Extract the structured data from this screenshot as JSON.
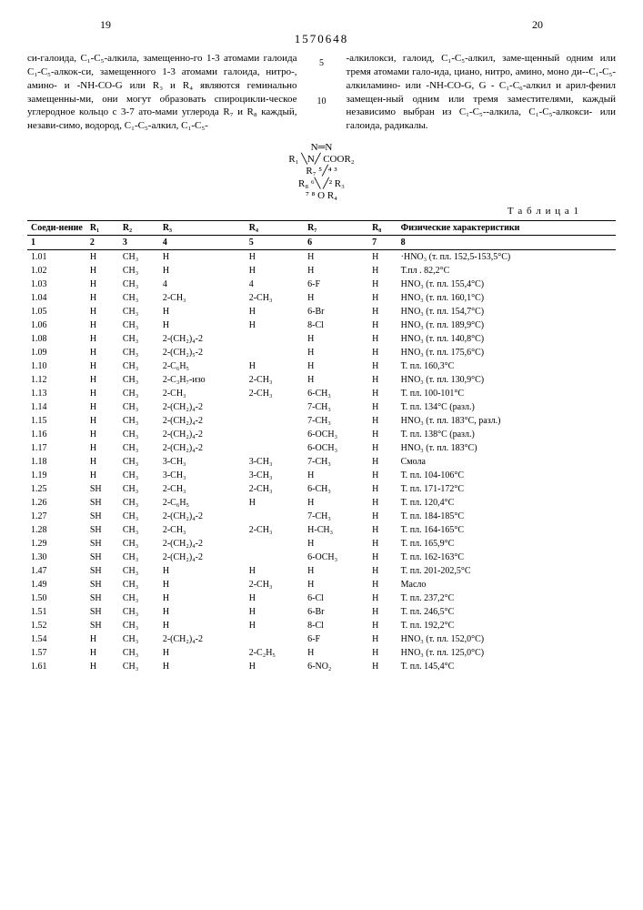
{
  "doc_number": "1570648",
  "page_left": "19",
  "page_right": "20",
  "left_text": "си-галоида, C₁-C₅-алкила, замещенно-го 1-3 атомами галоида C₁-C₅-алкок-си, замещенного 1-3 атомами галоида, нитро-, амино- и -NH-CO-G или R₃ и R₄ являются геминально замещенны-ми, они могут образовать спироцикли-ческое углеродное кольцо с 3-7 ато-мами углерода R₇ и R₈ каждый, незави-симо, водород, C₁-C₅-алкил, C₁-C₅-",
  "right_text": "-алкилокси, галоид, C₁-C₅-алкил, заме-щенный одним или тремя атомами гало-ида, циано, нитро, амино, моно ди--C₁-C₅-алкиламино- или -NH-CO-G, G - C₁-C₆-алкил и арил-фенил замещен-ный одним или тремя заместителями, каждый независимо выбран из C₁-C₅--алкила, C₁-C₅-алкокси- или галоида, радикалы.",
  "line_marker_5": "5",
  "line_marker_10": "10",
  "diagram_top": "N═N",
  "diagram_mid": "R₁ ╲N╱ COOR₂",
  "diagram_hex1": "R₇ ⁵╱⁴ ³",
  "diagram_hex2": "R₈ ⁶╲ ╱² R₃",
  "diagram_hex3": "   ⁷ ⁸  O  R₄",
  "table_caption": "Т а б л и ц а  1",
  "headers": {
    "c1": "Соеди-нение",
    "c2": "R₁",
    "c3": "R₂",
    "c4": "R₃",
    "c5": "R₄",
    "c6": "R₇",
    "c7": "R₈",
    "c8": "Физические характеристики"
  },
  "col_nums": {
    "n1": "1",
    "n2": "2",
    "n3": "3",
    "n4": "4",
    "n5": "5",
    "n6": "6",
    "n7": "7",
    "n8": "8"
  },
  "rows": [
    {
      "id": "1.01",
      "r1": "H",
      "r2": "CH₃",
      "r3": "H",
      "r4": "H",
      "r5": "H",
      "r6": "H",
      "phys": "·HNO₃ (т. пл. 152,5-153,5°C)"
    },
    {
      "id": "1.02",
      "r1": "H",
      "r2": "CH₃",
      "r3": "H",
      "r4": "H",
      "r5": "H",
      "r6": "H",
      "phys": "Т.пл . 82,2°C"
    },
    {
      "id": "1.03",
      "r1": "H",
      "r2": "CH₃",
      "r3": "4",
      "r4": "4",
      "r5": "6-F",
      "r6": "H",
      "phys": "HNO₃ (т. пл. 155,4°C)"
    },
    {
      "id": "1.04",
      "r1": "H",
      "r2": "CH₃",
      "r3": "2-CH₃",
      "r4": "2-CH₃",
      "r5": "H",
      "r6": "H",
      "phys": "HNO₃ (т. пл. 160,1°C)"
    },
    {
      "id": "1.05",
      "r1": "H",
      "r2": "CH₃",
      "r3": "H",
      "r4": "H",
      "r5": "6-Br",
      "r6": "H",
      "phys": "HNO₃ (т. пл. 154,7°C)"
    },
    {
      "id": "1.06",
      "r1": "H",
      "r2": "CH₃",
      "r3": "H",
      "r4": "H",
      "r5": "8-Cl",
      "r6": "H",
      "phys": "HNO₃ (т. пл. 189,9°C)"
    },
    {
      "id": "1.08",
      "r1": "H",
      "r2": "CH₃",
      "r3": "2-(CH₂)₄-2",
      "r4": "",
      "r5": "H",
      "r6": "H",
      "phys": "HNO₃ (т. пл. 140,8°C)"
    },
    {
      "id": "1.09",
      "r1": "H",
      "r2": "CH₃",
      "r3": "2-(CH₂)₅-2",
      "r4": "",
      "r5": "H",
      "r6": "H",
      "phys": "HNO₃ (т. пл. 175,6°C)"
    },
    {
      "id": "1.10",
      "r1": "H",
      "r2": "CH₃",
      "r3": "2-C₆H₅",
      "r4": "H",
      "r5": "H",
      "r6": "H",
      "phys": "Т. пл. 160,3°C"
    },
    {
      "id": "1.12",
      "r1": "H",
      "r2": "CH₃",
      "r3": "2-C₃H₇-изо",
      "r4": "2-CH₃",
      "r5": "H",
      "r6": "H",
      "phys": "HNO₃ (т. пл. 130,9°C)"
    },
    {
      "id": "1.13",
      "r1": "H",
      "r2": "CH₃",
      "r3": "2-CH₃",
      "r4": "2-CH₃",
      "r5": "6-CH₃",
      "r6": "H",
      "phys": "Т. пл. 100-101°C"
    },
    {
      "id": "1.14",
      "r1": "H",
      "r2": "CH₃",
      "r3": "2-(CH₂)₄-2",
      "r4": "",
      "r5": "7-CH₃",
      "r6": "H",
      "phys": "Т. пл. 134°C (разл.)"
    },
    {
      "id": "1.15",
      "r1": "H",
      "r2": "CH₃",
      "r3": "2-(CH₂)₄-2",
      "r4": "",
      "r5": "7-CH₃",
      "r6": "H",
      "phys": "HNO₃ (т. пл. 183°C, разл.)"
    },
    {
      "id": "1.16",
      "r1": "H",
      "r2": "CH₃",
      "r3": "2-(CH₂)₄-2",
      "r4": "",
      "r5": "6-OCH₃",
      "r6": "H",
      "phys": "Т. пл. 138°C (разл.)"
    },
    {
      "id": "1.17",
      "r1": "H",
      "r2": "CH₃",
      "r3": "2-(CH₂)₄-2",
      "r4": "",
      "r5": "6-OCH₃",
      "r6": "H",
      "phys": "HNO₃ (т. пл. 183°C)"
    },
    {
      "id": "1.18",
      "r1": "H",
      "r2": "CH₃",
      "r3": "3-CH₃",
      "r4": "3-CH₃",
      "r5": "7-CH₃",
      "r6": "H",
      "phys": "Смола"
    },
    {
      "id": "1.19",
      "r1": "H",
      "r2": "CH₃",
      "r3": "3-CH₃",
      "r4": "3-CH₃",
      "r5": "H",
      "r6": "H",
      "phys": "Т. пл. 104-106°C"
    },
    {
      "id": "1.25",
      "r1": "SH",
      "r2": "CH₃",
      "r3": "2-CH₃",
      "r4": "2-CH₃",
      "r5": "6-CH₃",
      "r6": "H",
      "phys": "Т. пл. 171-172°C"
    },
    {
      "id": "1.26",
      "r1": "SH",
      "r2": "CH₃",
      "r3": "2-C₆H₅",
      "r4": "H",
      "r5": "H",
      "r6": "H",
      "phys": "Т. пл. 120,4°C"
    },
    {
      "id": "1.27",
      "r1": "SH",
      "r2": "CH₃",
      "r3": "2-(CH₂)₄-2",
      "r4": "",
      "r5": "7-CH₃",
      "r6": "H",
      "phys": "Т. пл. 184-185°C"
    },
    {
      "id": "1.28",
      "r1": "SH",
      "r2": "CH₃",
      "r3": "2-CH₃",
      "r4": "2-CH₃",
      "r5": "H-CH₃",
      "r6": "H",
      "phys": "Т. пл. 164-165°C"
    },
    {
      "id": "1.29",
      "r1": "SH",
      "r2": "CH₃",
      "r3": "2-(CH₂)₄-2",
      "r4": "",
      "r5": "H",
      "r6": "H",
      "phys": "Т. пл. 165,9°C"
    },
    {
      "id": "1.30",
      "r1": "SH",
      "r2": "CH₃",
      "r3": "2-(CH₂)₄-2",
      "r4": "",
      "r5": "6-OCH₃",
      "r6": "H",
      "phys": "Т. пл. 162-163°C"
    },
    {
      "id": "1.47",
      "r1": "SH",
      "r2": "CH₃",
      "r3": "H",
      "r4": "H",
      "r5": "H",
      "r6": "H",
      "phys": "Т. пл. 201-202,5°C"
    },
    {
      "id": "1.49",
      "r1": "SH",
      "r2": "CH₃",
      "r3": "H",
      "r4": "2-CH₃",
      "r5": "H",
      "r6": "H",
      "phys": "Масло"
    },
    {
      "id": "1.50",
      "r1": "SH",
      "r2": "CH₃",
      "r3": "H",
      "r4": "H",
      "r5": "6-Cl",
      "r6": "H",
      "phys": "Т. пл. 237,2°C"
    },
    {
      "id": "1.51",
      "r1": "SH",
      "r2": "CH₃",
      "r3": "H",
      "r4": "H",
      "r5": "6-Br",
      "r6": "H",
      "phys": "Т. пл. 246,5°C"
    },
    {
      "id": "1.52",
      "r1": "SH",
      "r2": "CH₃",
      "r3": "H",
      "r4": "H",
      "r5": "8-Cl",
      "r6": "H",
      "phys": "Т. пл. 192,2°C"
    },
    {
      "id": "1.54",
      "r1": "H",
      "r2": "CH₃",
      "r3": "2-(CH₂)₄-2",
      "r4": "",
      "r5": "6-F",
      "r6": "H",
      "phys": "HNO₃ (т. пл. 152,0°C)"
    },
    {
      "id": "1.57",
      "r1": "H",
      "r2": "CH₃",
      "r3": "H",
      "r4": "2-C₂H₅",
      "r5": "H",
      "r6": "H",
      "phys": "HNO₃ (т. пл. 125,0°C)"
    },
    {
      "id": "1.61",
      "r1": "H",
      "r2": "CH₃",
      "r3": "H",
      "r4": "H",
      "r5": "6-NO₂",
      "r6": "H",
      "phys": "Т. пл. 145,4°C"
    }
  ]
}
